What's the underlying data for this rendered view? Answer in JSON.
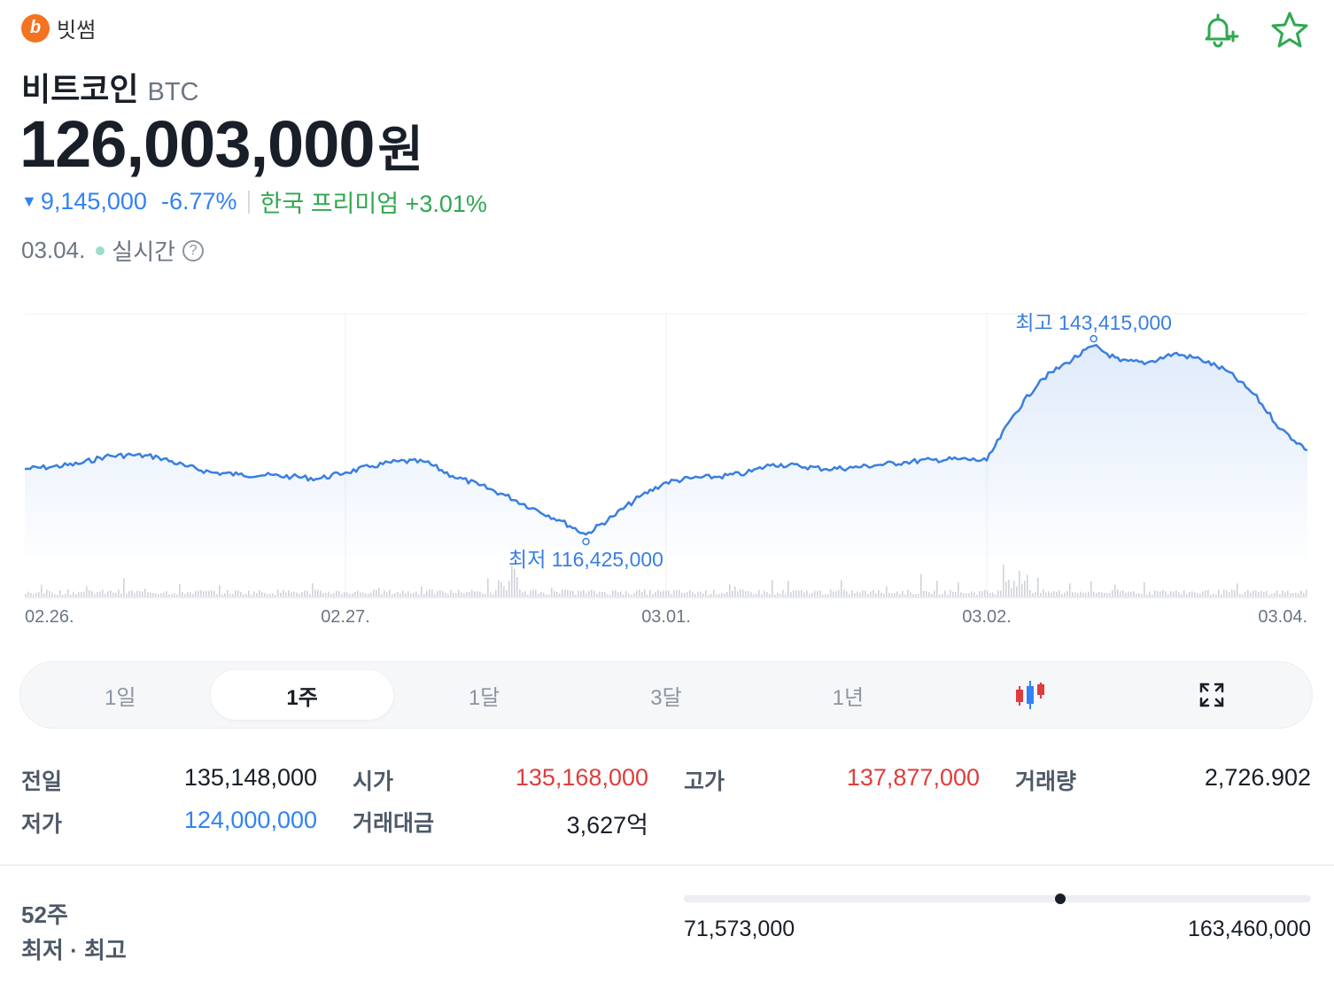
{
  "exchange": {
    "logo_letter": "b",
    "name": "빗썸"
  },
  "actions": {
    "alert_icon": "bell-plus-icon",
    "favorite_icon": "star-icon"
  },
  "coin": {
    "name": "비트코인",
    "symbol": "BTC"
  },
  "price": {
    "value": "126,003,000",
    "unit": "원"
  },
  "change": {
    "arrow": "▼",
    "amount": "9,145,000",
    "percent": "-6.77%",
    "premium": "한국 프리미엄 +3.01%"
  },
  "status": {
    "date": "03.04.",
    "realtime": "실시간",
    "help": "?"
  },
  "colors": {
    "up": "#e03c3c",
    "down": "#3182f6",
    "premium": "#2fa84f",
    "line": "#3a7fe0"
  },
  "chart_data": {
    "type": "line",
    "x_ticks": [
      "02.26.",
      "02.27.",
      "03.01.",
      "03.02.",
      "03.04."
    ],
    "annotations": {
      "high": "최고 143,415,000",
      "low": "최저 116,425,000"
    },
    "high": 143415000,
    "low": 116425000,
    "series": [
      {
        "x": [
          "02.26. 00:00",
          "02.26. 03:00",
          "02.26. 06:00",
          "02.26. 09:00",
          "02.26. 12:00",
          "02.26. 15:00",
          "02.26. 18:00",
          "02.26. 21:00",
          "02.27. 00:00",
          "02.27. 03:00",
          "02.27. 06:00",
          "02.27. 09:00",
          "02.27. 12:00",
          "02.27. 15:00",
          "02.27. 18:00",
          "02.27. 21:00",
          "02.28. 00:00",
          "02.28. 03:00",
          "02.28. 06:00",
          "02.28. 09:00",
          "02.28. 12:00",
          "02.28. 15:00",
          "02.28. 18:00",
          "02.28. 21:00",
          "03.01. 00:00",
          "03.01. 03:00",
          "03.01. 06:00",
          "03.01. 09:00",
          "03.01. 12:00",
          "03.01. 15:00",
          "03.01. 18:00",
          "03.01. 21:00",
          "03.02. 00:00",
          "03.02. 03:00",
          "03.02. 06:00",
          "03.02. 09:00",
          "03.02. 12:00",
          "03.02. 15:00",
          "03.02. 18:00",
          "03.02. 21:00",
          "03.03. 00:00",
          "03.03. 03:00",
          "03.03. 06:00",
          "03.03. 09:00",
          "03.03. 12:00",
          "03.03. 15:00",
          "03.03. 18:00",
          "03.03. 21:00",
          "03.04. 00:00"
        ],
        "values": [
          125800000,
          126100000,
          126500000,
          127600000,
          127800000,
          127500000,
          126200000,
          125300000,
          125000000,
          124900000,
          124700000,
          124400000,
          125300000,
          126200000,
          126900000,
          126800000,
          124800000,
          123500000,
          122000000,
          120200000,
          118500000,
          116425000,
          119000000,
          121800000,
          123900000,
          124500000,
          124700000,
          125200000,
          126500000,
          126200000,
          125800000,
          126000000,
          126400000,
          126800000,
          127100000,
          127200000,
          127000000,
          133500000,
          138500000,
          141000000,
          143415000,
          141200000,
          141000000,
          142300000,
          141500000,
          139800000,
          136500000,
          131500000,
          128500000
        ]
      }
    ],
    "ylim": [
      113000000,
      148000000
    ]
  },
  "periods": [
    "1일",
    "1주",
    "1달",
    "3달",
    "1년"
  ],
  "active_period": "1주",
  "tools": {
    "candle_icon": "candlestick-icon",
    "expand_icon": "fullscreen-icon"
  },
  "stats": {
    "prev_close_label": "전일",
    "prev_close": "135,148,000",
    "open_label": "시가",
    "open": "135,168,000",
    "high_label": "고가",
    "high": "137,877,000",
    "volume_label": "거래량",
    "volume": "2,726.902",
    "low_label": "저가",
    "low": "124,000,000",
    "turnover_label": "거래대금",
    "turnover": "3,627억"
  },
  "range52": {
    "label1": "52주",
    "label2": "최저 · 최고",
    "min": "71,573,000",
    "max": "163,460,000",
    "current_fraction": 0.6
  }
}
